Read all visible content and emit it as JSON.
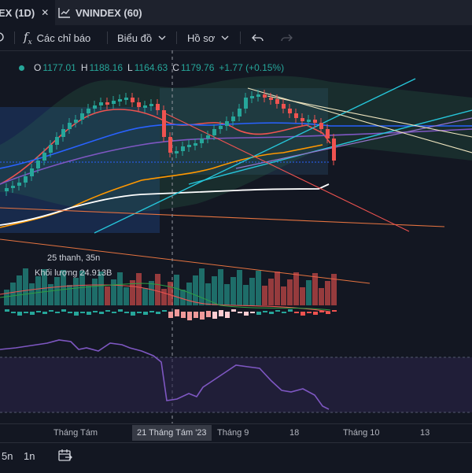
{
  "tabs": [
    {
      "label": "EX (1D)",
      "close": "✕"
    },
    {
      "label": "VNINDEX (60)"
    }
  ],
  "toolbar": {
    "indicators_label": "Các chỉ báo",
    "chart_label": "Biểu đồ",
    "profile_label": "Hồ sơ"
  },
  "ohlc": {
    "o_label": "O",
    "o_value": "1177.01",
    "h_label": "H",
    "h_value": "1188.16",
    "l_label": "L",
    "l_value": "1164.63",
    "c_label": "C",
    "c_value": "1179.76",
    "change": "+1.77 (+0.15%)"
  },
  "volume": {
    "line1": "25 thanh, 35n",
    "line2": "Khối lượng 24.913B"
  },
  "x_axis": {
    "labels": [
      "Tháng Tám",
      "Tháng 9",
      "18",
      "Tháng 10",
      "13"
    ],
    "crosshair": "21 Tháng Tám '23"
  },
  "bottom": {
    "tf1": "5n",
    "tf2": "1n"
  },
  "colors": {
    "background": "#131722",
    "up": "#26a69a",
    "down": "#ef5350",
    "rsi": "#7e57c2"
  }
}
